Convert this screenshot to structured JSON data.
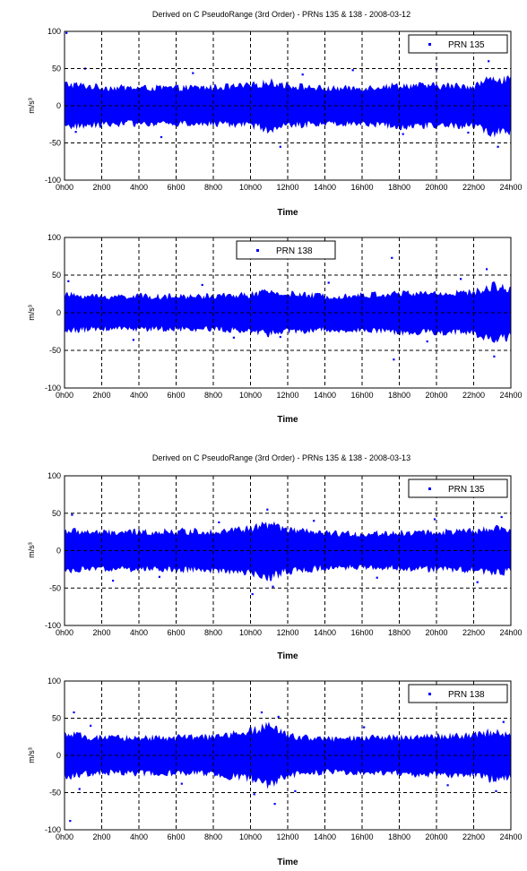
{
  "chart_data": [
    {
      "type": "scatter",
      "title": "Derived on C PseudoRange (3rd Order) - PRNs 135 & 138 - 2008-03-12",
      "xlabel": "Time",
      "ylabel": "m/s³",
      "xticks": [
        "0h00",
        "2h00",
        "4h00",
        "6h00",
        "8h00",
        "10h00",
        "12h00",
        "14h00",
        "16h00",
        "18h00",
        "20h00",
        "22h00",
        "24h00"
      ],
      "yticks": [
        -100,
        -50,
        0,
        50,
        100
      ],
      "xlim": [
        0,
        24
      ],
      "ylim": [
        -100,
        100
      ],
      "grid": true,
      "legend_position": "top-right",
      "series": [
        {
          "name": "PRN 135",
          "color": "#0000ff",
          "envelope": {
            "t": [
              0,
              2,
              4,
              6,
              8,
              10,
              11,
              12,
              14,
              16,
              18,
              20,
              22,
              23,
              24
            ],
            "amplitude": [
              33,
              28,
              27,
              27,
              28,
              30,
              36,
              31,
              26,
              27,
              31,
              30,
              30,
              42,
              38
            ]
          },
          "outliers": [
            [
              0.1,
              98
            ],
            [
              0.6,
              -35
            ],
            [
              1.1,
              50
            ],
            [
              5.2,
              -42
            ],
            [
              6.9,
              44
            ],
            [
              11.6,
              -55
            ],
            [
              12.8,
              42
            ],
            [
              15.5,
              48
            ],
            [
              18.2,
              -38
            ],
            [
              20.0,
              49
            ],
            [
              21.7,
              -36
            ],
            [
              22.8,
              60
            ],
            [
              23.3,
              -55
            ]
          ]
        }
      ]
    },
    {
      "type": "scatter",
      "title": "",
      "xlabel": "Time",
      "ylabel": "m/s³",
      "xticks": [
        "0h00",
        "2h00",
        "4h00",
        "6h00",
        "8h00",
        "10h00",
        "12h00",
        "14h00",
        "16h00",
        "18h00",
        "20h00",
        "22h00",
        "24h00"
      ],
      "yticks": [
        -100,
        -50,
        0,
        50,
        100
      ],
      "xlim": [
        0,
        24
      ],
      "ylim": [
        -100,
        100
      ],
      "grid": true,
      "legend_position": "top-center",
      "series": [
        {
          "name": "PRN 138",
          "color": "#0000ff",
          "envelope": {
            "t": [
              0,
              2,
              4,
              6,
              8,
              10,
              11,
              12,
              14,
              16,
              18,
              20,
              22,
              23,
              24
            ],
            "amplitude": [
              27,
              24,
              25,
              24,
              25,
              27,
              31,
              28,
              25,
              26,
              29,
              29,
              30,
              40,
              36
            ]
          },
          "outliers": [
            [
              0.2,
              42
            ],
            [
              3.7,
              -36
            ],
            [
              7.4,
              37
            ],
            [
              9.1,
              -33
            ],
            [
              11.6,
              -32
            ],
            [
              14.2,
              40
            ],
            [
              17.6,
              73
            ],
            [
              17.7,
              -62
            ],
            [
              19.5,
              -38
            ],
            [
              21.3,
              45
            ],
            [
              22.7,
              58
            ],
            [
              23.1,
              -58
            ]
          ]
        }
      ]
    },
    {
      "type": "scatter",
      "title": "Derived on C PseudoRange (3rd Order) - PRNs 135 & 138 - 2008-03-13",
      "xlabel": "Time",
      "ylabel": "m/s³",
      "xticks": [
        "0h00",
        "2h00",
        "4h00",
        "6h00",
        "8h00",
        "10h00",
        "12h00",
        "14h00",
        "16h00",
        "18h00",
        "20h00",
        "22h00",
        "24h00"
      ],
      "yticks": [
        -100,
        -50,
        0,
        50,
        100
      ],
      "xlim": [
        0,
        24
      ],
      "ylim": [
        -100,
        100
      ],
      "grid": true,
      "legend_position": "top-right",
      "series": [
        {
          "name": "PRN 135",
          "color": "#0000ff",
          "envelope": {
            "t": [
              0,
              2,
              4,
              6,
              8,
              10,
              11,
              12,
              14,
              16,
              18,
              20,
              22,
              23,
              24
            ],
            "amplitude": [
              30,
              27,
              28,
              29,
              29,
              33,
              40,
              31,
              26,
              25,
              27,
              28,
              29,
              33,
              31
            ]
          },
          "outliers": [
            [
              0.4,
              48
            ],
            [
              2.6,
              -40
            ],
            [
              5.1,
              -35
            ],
            [
              8.3,
              38
            ],
            [
              10.1,
              -58
            ],
            [
              10.9,
              55
            ],
            [
              11.2,
              -48
            ],
            [
              13.4,
              40
            ],
            [
              16.8,
              -36
            ],
            [
              19.9,
              42
            ],
            [
              22.2,
              -42
            ],
            [
              23.5,
              45
            ]
          ]
        }
      ]
    },
    {
      "type": "scatter",
      "title": "",
      "xlabel": "Time",
      "ylabel": "m/s³",
      "xticks": [
        "0h00",
        "2h00",
        "4h00",
        "6h00",
        "8h00",
        "10h00",
        "12h00",
        "14h00",
        "16h00",
        "18h00",
        "20h00",
        "22h00",
        "24h00"
      ],
      "yticks": [
        -100,
        -50,
        0,
        50,
        100
      ],
      "xlim": [
        0,
        24
      ],
      "ylim": [
        -100,
        100
      ],
      "grid": true,
      "legend_position": "top-right",
      "series": [
        {
          "name": "PRN 138",
          "color": "#0000ff",
          "envelope": {
            "t": [
              0,
              2,
              4,
              6,
              8,
              10,
              11,
              12,
              14,
              16,
              18,
              20,
              22,
              23,
              24
            ],
            "amplitude": [
              32,
              26,
              27,
              27,
              28,
              36,
              45,
              30,
              25,
              26,
              28,
              29,
              30,
              36,
              32
            ]
          },
          "outliers": [
            [
              0.3,
              -88
            ],
            [
              0.5,
              58
            ],
            [
              0.8,
              -45
            ],
            [
              1.4,
              40
            ],
            [
              6.3,
              -38
            ],
            [
              10.2,
              -52
            ],
            [
              10.6,
              58
            ],
            [
              11.3,
              -65
            ],
            [
              11.5,
              52
            ],
            [
              12.4,
              -48
            ],
            [
              16.1,
              38
            ],
            [
              20.6,
              -40
            ],
            [
              23.2,
              -48
            ],
            [
              23.6,
              45
            ]
          ]
        }
      ]
    }
  ]
}
